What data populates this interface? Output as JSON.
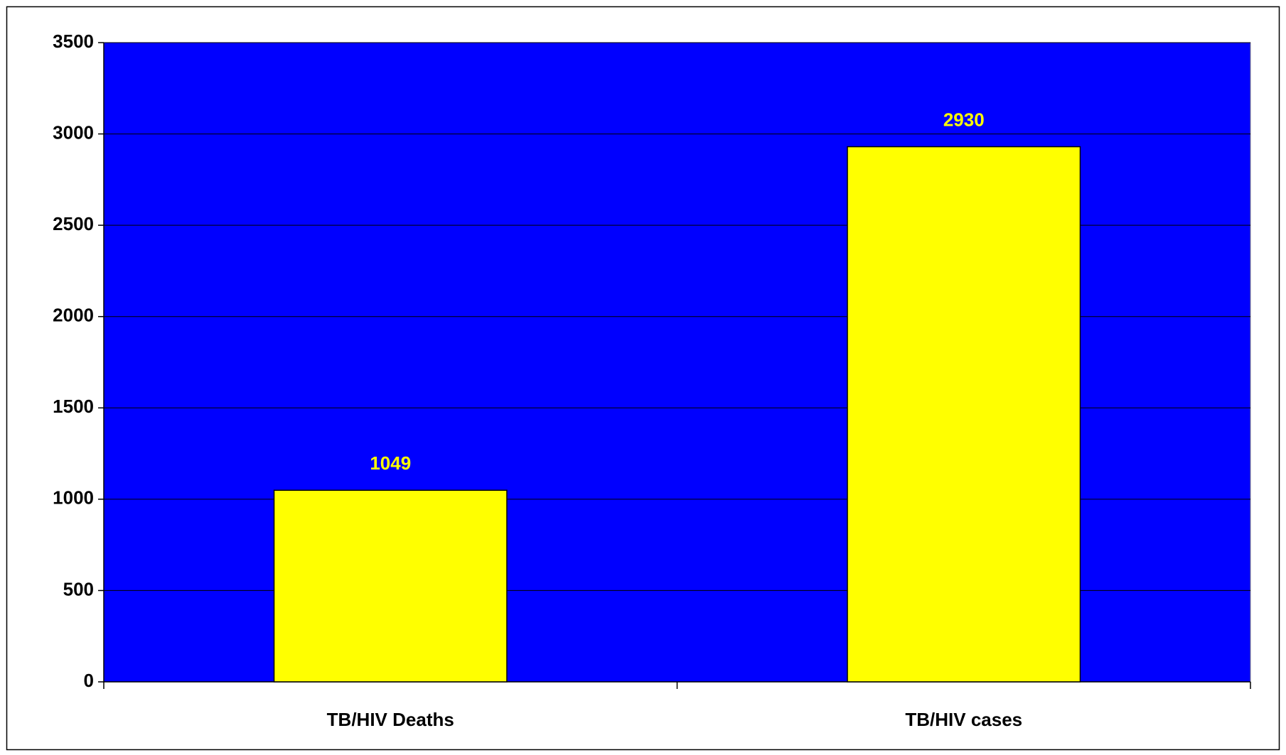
{
  "chart_data": {
    "type": "bar",
    "categories": [
      "TB/HIV Deaths",
      "TB/HIV cases"
    ],
    "values": [
      1049,
      2930
    ],
    "color": "#ffff00",
    "plot_background": "#0000ff",
    "ylim": [
      0,
      3500
    ],
    "yticks": [
      0,
      500,
      1000,
      1500,
      2000,
      2500,
      3000,
      3500
    ],
    "grid": true,
    "data_labels": true
  }
}
